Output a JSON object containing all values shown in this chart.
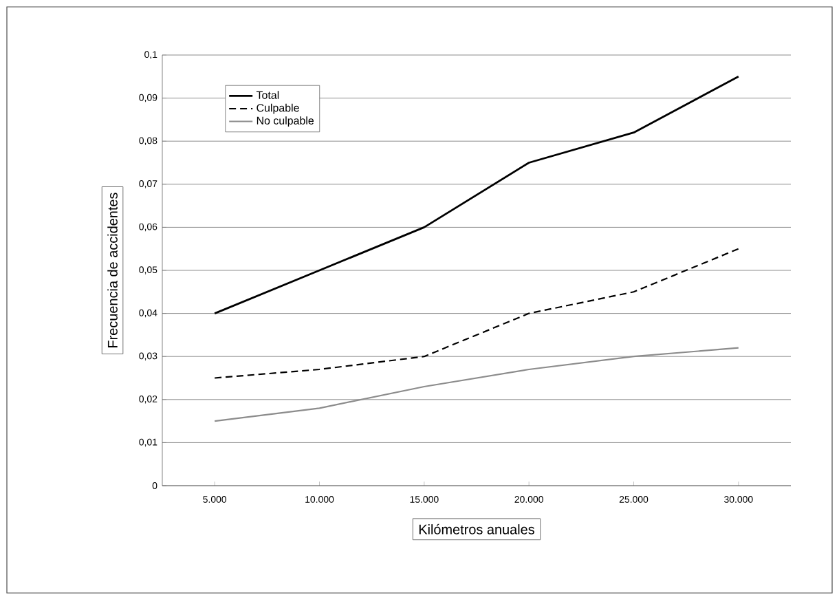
{
  "chart_data": {
    "type": "line",
    "xlabel": "Kilómetros anuales",
    "ylabel": "Frecuencia de accidentes",
    "categories": [
      "5.000",
      "10.000",
      "15.000",
      "20.000",
      "25.000",
      "30.000"
    ],
    "series": [
      {
        "name": "Total",
        "color": "#000000",
        "line_style": "solid",
        "values": [
          0.04,
          0.05,
          0.06,
          0.075,
          0.082,
          0.095
        ]
      },
      {
        "name": "Culpable",
        "color": "#000000",
        "line_style": "dashed",
        "values": [
          0.025,
          0.027,
          0.03,
          0.04,
          0.045,
          0.055
        ]
      },
      {
        "name": "No culpable",
        "color": "#8c8c8c",
        "line_style": "solid",
        "values": [
          0.015,
          0.018,
          0.023,
          0.027,
          0.03,
          0.032
        ]
      }
    ],
    "ylim": [
      0,
      0.1
    ],
    "yticks": [
      {
        "value": 0,
        "label": "0"
      },
      {
        "value": 0.01,
        "label": "0,01"
      },
      {
        "value": 0.02,
        "label": "0,02"
      },
      {
        "value": 0.03,
        "label": "0,03"
      },
      {
        "value": 0.04,
        "label": "0,04"
      },
      {
        "value": 0.05,
        "label": "0,05"
      },
      {
        "value": 0.06,
        "label": "0,06"
      },
      {
        "value": 0.07,
        "label": "0,07"
      },
      {
        "value": 0.08,
        "label": "0,08"
      },
      {
        "value": 0.09,
        "label": "0,09"
      },
      {
        "value": 0.1,
        "label": "0,1"
      }
    ],
    "grid": "y",
    "legend": "top left",
    "marker": "none"
  }
}
